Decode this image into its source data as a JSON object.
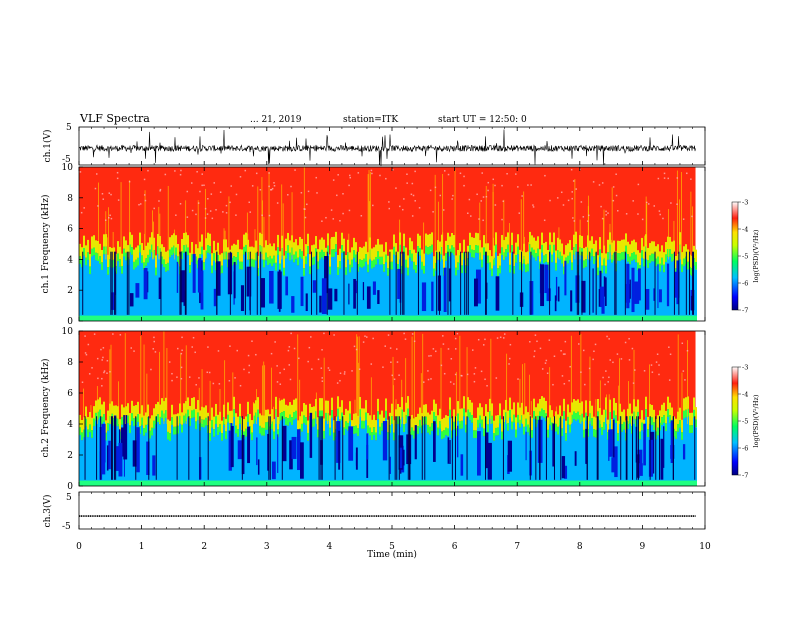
{
  "header": {
    "title": "VLF Spectra",
    "date": "... 21, 2019",
    "station": "station=ITK",
    "start_ut": "start UT =  12:50: 0"
  },
  "colorbar": {
    "label": "log(PSD)(V²/Hz)",
    "ticks": [
      "-3",
      "-4",
      "-5",
      "-6",
      "-7"
    ]
  },
  "chart_data": [
    {
      "type": "line",
      "panel": "ch1-waveform",
      "ylabel": "ch.1(V)",
      "ylim": [
        -5,
        5
      ],
      "y_ticks": [
        "5",
        "-5"
      ],
      "description_color": "#000000"
    },
    {
      "type": "heatmap",
      "panel": "ch1-spectrogram",
      "ylabel": "ch.1 Frequency (kHz)",
      "ylim": [
        0,
        10
      ],
      "y_ticks": [
        "10",
        "8",
        "6",
        "4",
        "2",
        "0"
      ],
      "colorbar_range": [
        -7,
        -3
      ]
    },
    {
      "type": "heatmap",
      "panel": "ch2-spectrogram",
      "ylabel": "ch.2 Frequency (kHz)",
      "ylim": [
        0,
        10
      ],
      "y_ticks": [
        "10",
        "8",
        "6",
        "4",
        "2",
        "0"
      ],
      "colorbar_range": [
        -7,
        -3
      ]
    },
    {
      "type": "line",
      "panel": "ch3-waveform",
      "ylabel": "ch.3(V)",
      "ylim": [
        -5,
        5
      ],
      "y_ticks": [
        "5",
        "-5"
      ],
      "flat_value": -1.5
    }
  ],
  "x_axis": {
    "label": "Time (min)",
    "ticks": [
      "0",
      "1",
      "2",
      "3",
      "4",
      "5",
      "6",
      "7",
      "8",
      "9",
      "10"
    ],
    "xlim": [
      0,
      10
    ],
    "data_end": 9.85
  }
}
